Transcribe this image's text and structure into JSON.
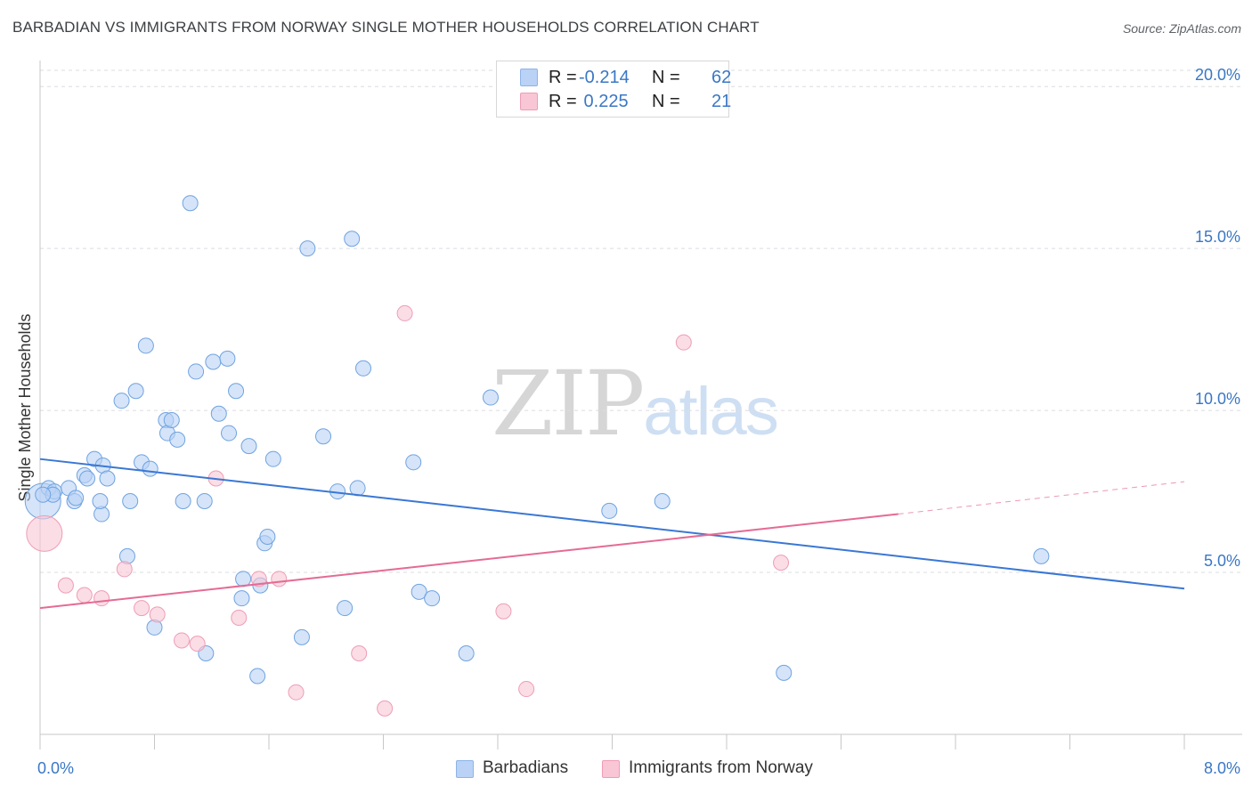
{
  "title": "BARBADIAN VS IMMIGRANTS FROM NORWAY SINGLE MOTHER HOUSEHOLDS CORRELATION CHART",
  "source": "Source: ZipAtlas.com",
  "watermark": {
    "zip": "ZIP",
    "atlas": "atlas"
  },
  "legend_top": [
    {
      "r_label": "R = ",
      "r_value": "-0.214",
      "n_label": "N = ",
      "n_value": "62",
      "color": "#b9d2f5",
      "border": "#8db4e8"
    },
    {
      "r_label": "R = ",
      "r_value": " 0.225",
      "n_label": "N = ",
      "n_value": "21",
      "color": "#f9c6d5",
      "border": "#ee9db5"
    }
  ],
  "legend_bottom": [
    {
      "label": "Barbadians",
      "color": "#b9d2f5",
      "border": "#8db4e8"
    },
    {
      "label": "Immigrants from Norway",
      "color": "#f9c6d5",
      "border": "#ee9db5"
    }
  ],
  "chart_data": {
    "type": "scatter",
    "title": "BARBADIAN VS IMMIGRANTS FROM NORWAY SINGLE MOTHER HOUSEHOLDS CORRELATION CHART",
    "xlabel": "",
    "ylabel": "Single Mother Households",
    "xlim": [
      0,
      8
    ],
    "ylim": [
      0,
      20.5
    ],
    "x_tick_labels": [
      "0.0%",
      "8.0%"
    ],
    "y_ticks": [
      5,
      10,
      15,
      20
    ],
    "y_tick_labels": [
      "5.0%",
      "10.0%",
      "15.0%",
      "20.0%"
    ],
    "grid": "horizontal dashed",
    "legend_position": "top-center and bottom",
    "series": [
      {
        "name": "Barbadians",
        "color": "#6fa3e0",
        "fill": "#b9d2f5",
        "trend": {
          "x": [
            0,
            8
          ],
          "y": [
            8.5,
            4.5
          ],
          "style": "solid",
          "color": "#3a77d4"
        },
        "points": [
          {
            "x": 0.02,
            "y": 7.2,
            "big": true
          },
          {
            "x": 0.06,
            "y": 7.6
          },
          {
            "x": 0.1,
            "y": 7.5
          },
          {
            "x": 0.09,
            "y": 7.4
          },
          {
            "x": 0.2,
            "y": 7.6
          },
          {
            "x": 0.24,
            "y": 7.2
          },
          {
            "x": 0.25,
            "y": 7.3
          },
          {
            "x": 0.31,
            "y": 8.0
          },
          {
            "x": 0.33,
            "y": 7.9
          },
          {
            "x": 0.38,
            "y": 8.5
          },
          {
            "x": 0.44,
            "y": 8.3
          },
          {
            "x": 0.47,
            "y": 7.9
          },
          {
            "x": 0.43,
            "y": 6.8
          },
          {
            "x": 0.42,
            "y": 7.2
          },
          {
            "x": 0.57,
            "y": 10.3
          },
          {
            "x": 0.67,
            "y": 10.6
          },
          {
            "x": 0.74,
            "y": 12.0
          },
          {
            "x": 0.71,
            "y": 8.4
          },
          {
            "x": 0.77,
            "y": 8.2
          },
          {
            "x": 0.63,
            "y": 7.2
          },
          {
            "x": 0.61,
            "y": 5.5
          },
          {
            "x": 0.8,
            "y": 3.3
          },
          {
            "x": 0.88,
            "y": 9.7
          },
          {
            "x": 0.89,
            "y": 9.3
          },
          {
            "x": 0.92,
            "y": 9.7
          },
          {
            "x": 0.96,
            "y": 9.1
          },
          {
            "x": 1.0,
            "y": 7.2
          },
          {
            "x": 1.05,
            "y": 16.4
          },
          {
            "x": 1.09,
            "y": 11.2
          },
          {
            "x": 1.15,
            "y": 7.2
          },
          {
            "x": 1.16,
            "y": 2.5
          },
          {
            "x": 1.21,
            "y": 11.5
          },
          {
            "x": 1.25,
            "y": 9.9
          },
          {
            "x": 1.31,
            "y": 11.6
          },
          {
            "x": 1.32,
            "y": 9.3
          },
          {
            "x": 1.37,
            "y": 10.6
          },
          {
            "x": 1.41,
            "y": 4.2
          },
          {
            "x": 1.42,
            "y": 4.8
          },
          {
            "x": 1.46,
            "y": 8.9
          },
          {
            "x": 1.52,
            "y": 1.8
          },
          {
            "x": 1.54,
            "y": 4.6
          },
          {
            "x": 1.57,
            "y": 5.9
          },
          {
            "x": 1.59,
            "y": 6.1
          },
          {
            "x": 1.63,
            "y": 8.5
          },
          {
            "x": 1.83,
            "y": 3.0
          },
          {
            "x": 1.87,
            "y": 15.0
          },
          {
            "x": 1.98,
            "y": 9.2
          },
          {
            "x": 2.08,
            "y": 7.5
          },
          {
            "x": 2.13,
            "y": 3.9
          },
          {
            "x": 2.18,
            "y": 15.3
          },
          {
            "x": 2.22,
            "y": 7.6
          },
          {
            "x": 2.26,
            "y": 11.3
          },
          {
            "x": 2.61,
            "y": 8.4
          },
          {
            "x": 2.65,
            "y": 4.4
          },
          {
            "x": 2.74,
            "y": 4.2
          },
          {
            "x": 2.98,
            "y": 2.5
          },
          {
            "x": 3.15,
            "y": 10.4
          },
          {
            "x": 3.98,
            "y": 6.9
          },
          {
            "x": 4.35,
            "y": 7.2
          },
          {
            "x": 5.2,
            "y": 1.9
          },
          {
            "x": 7.0,
            "y": 5.5
          },
          {
            "x": 0.02,
            "y": 7.4
          }
        ]
      },
      {
        "name": "Immigrants from Norway",
        "color": "#ee9db5",
        "fill": "#f9c6d5",
        "trend": {
          "x": [
            0,
            6.0
          ],
          "y": [
            3.9,
            6.8
          ],
          "style": "solid",
          "color": "#e56b94",
          "dashed_extension": {
            "x": [
              6.0,
              8.0
            ],
            "y": [
              6.8,
              7.8
            ]
          }
        },
        "points": [
          {
            "x": 0.03,
            "y": 6.2,
            "big": true
          },
          {
            "x": 0.18,
            "y": 4.6
          },
          {
            "x": 0.31,
            "y": 4.3
          },
          {
            "x": 0.43,
            "y": 4.2
          },
          {
            "x": 0.59,
            "y": 5.1
          },
          {
            "x": 0.71,
            "y": 3.9
          },
          {
            "x": 0.82,
            "y": 3.7
          },
          {
            "x": 0.99,
            "y": 2.9
          },
          {
            "x": 1.1,
            "y": 2.8
          },
          {
            "x": 1.23,
            "y": 7.9
          },
          {
            "x": 1.39,
            "y": 3.6
          },
          {
            "x": 1.53,
            "y": 4.8
          },
          {
            "x": 1.67,
            "y": 4.8
          },
          {
            "x": 1.79,
            "y": 1.3
          },
          {
            "x": 2.23,
            "y": 2.5
          },
          {
            "x": 2.41,
            "y": 0.8
          },
          {
            "x": 2.55,
            "y": 13.0
          },
          {
            "x": 3.24,
            "y": 3.8
          },
          {
            "x": 3.4,
            "y": 1.4
          },
          {
            "x": 4.5,
            "y": 12.1
          },
          {
            "x": 5.18,
            "y": 5.3
          }
        ]
      }
    ]
  }
}
